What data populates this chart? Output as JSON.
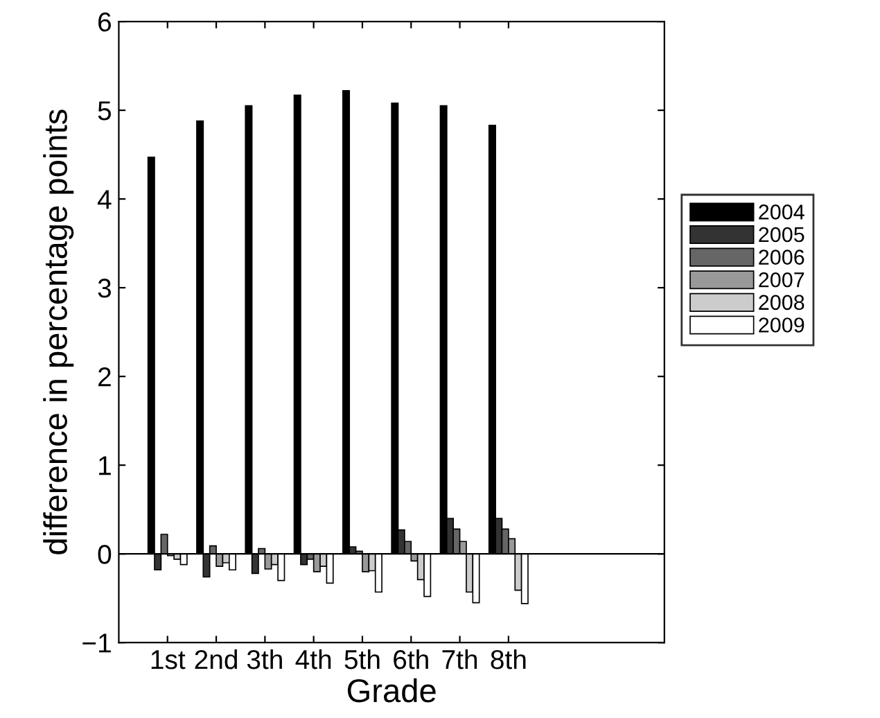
{
  "chart_data": {
    "type": "bar",
    "xlabel": "Grade",
    "ylabel": "difference in percentage points",
    "categories": [
      "1st",
      "2nd",
      "3th",
      "4th",
      "5th",
      "6th",
      "7th",
      "8th"
    ],
    "series": [
      {
        "name": "2004",
        "color": "#000000",
        "values": [
          4.47,
          4.88,
          5.05,
          5.17,
          5.22,
          5.08,
          5.05,
          4.83
        ]
      },
      {
        "name": "2005",
        "color": "#333333",
        "values": [
          -0.18,
          -0.26,
          -0.22,
          -0.12,
          0.08,
          0.27,
          0.4,
          0.4
        ]
      },
      {
        "name": "2006",
        "color": "#666666",
        "values": [
          0.22,
          0.09,
          0.06,
          -0.06,
          0.03,
          0.14,
          0.28,
          0.28
        ]
      },
      {
        "name": "2007",
        "color": "#999999",
        "values": [
          -0.02,
          -0.14,
          -0.17,
          -0.2,
          -0.2,
          -0.08,
          0.14,
          0.17
        ]
      },
      {
        "name": "2008",
        "color": "#cccccc",
        "values": [
          -0.06,
          -0.1,
          -0.12,
          -0.14,
          -0.19,
          -0.29,
          -0.43,
          -0.41
        ]
      },
      {
        "name": "2009",
        "color": "#ffffff",
        "values": [
          -0.12,
          -0.18,
          -0.3,
          -0.33,
          -0.43,
          -0.48,
          -0.55,
          -0.56
        ]
      }
    ],
    "ylim": [
      -1,
      6
    ],
    "yticks": [
      {
        "value": -1,
        "label": "−1"
      },
      0,
      1,
      2,
      3,
      4,
      5,
      6
    ],
    "ref_lines": [
      {
        "axis": "y",
        "value": 0,
        "color": "#000000"
      }
    ],
    "grid": false,
    "legend": "right"
  }
}
